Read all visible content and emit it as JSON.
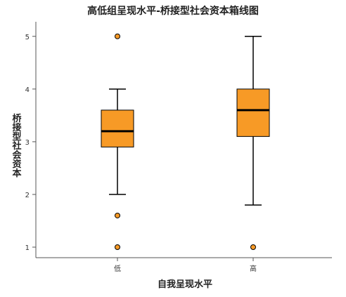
{
  "chart_data": {
    "type": "box",
    "title": "高低组呈现水平-桥接型社会资本箱线图",
    "xlabel": "自我呈现水平",
    "ylabel": "桥接型社会资本",
    "categories": [
      "低",
      "高"
    ],
    "ylim": [
      0.8,
      5.25
    ],
    "yticks": [
      1,
      2,
      3,
      4,
      5
    ],
    "grid": false,
    "box_color": "#F79A26",
    "outlier_color": "#F79A26",
    "boxes": [
      {
        "category": "低",
        "whisker_low": 2.0,
        "q1": 2.9,
        "median": 3.2,
        "q3": 3.6,
        "whisker_high": 4.0,
        "outliers": [
          5.0,
          1.6,
          1.0
        ]
      },
      {
        "category": "高",
        "whisker_low": 1.8,
        "q1": 3.1,
        "median": 3.6,
        "q3": 4.0,
        "whisker_high": 5.0,
        "outliers": [
          1.0
        ]
      }
    ]
  }
}
